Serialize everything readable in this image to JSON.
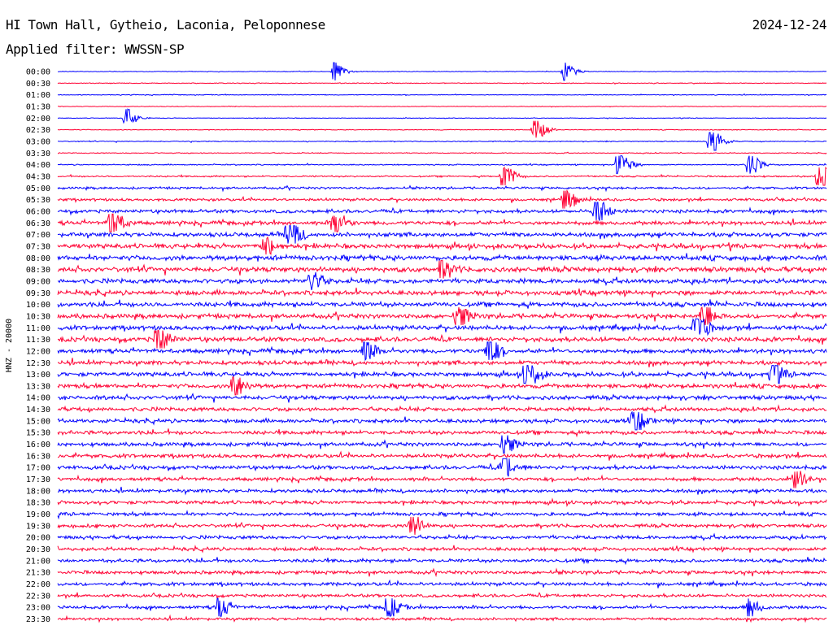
{
  "header": {
    "station": "HI Town Hall, Gytheio, Laconia, Peloponnese",
    "date": "2024-12-24",
    "filter": "Applied filter: WWSSN-SP"
  },
  "colors": {
    "even_row": "#0000ff",
    "odd_row": "#ff0033"
  },
  "chart_data": {
    "type": "line",
    "title": "HI Town Hall, Gytheio, Laconia, Peloponnese",
    "ylabel": "HNZ - 20000",
    "xlabel": "",
    "rows": [
      "00:00",
      "00:30",
      "01:00",
      "01:30",
      "02:00",
      "02:30",
      "03:00",
      "03:30",
      "04:00",
      "04:30",
      "05:00",
      "05:30",
      "06:00",
      "06:30",
      "07:00",
      "07:30",
      "08:00",
      "08:30",
      "09:00",
      "09:30",
      "10:00",
      "10:30",
      "11:00",
      "11:30",
      "12:00",
      "12:30",
      "13:00",
      "13:30",
      "14:00",
      "14:30",
      "15:00",
      "15:30",
      "16:00",
      "16:30",
      "17:00",
      "17:30",
      "18:00",
      "18:30",
      "19:00",
      "19:30",
      "20:00",
      "20:30",
      "21:00",
      "21:30",
      "22:00",
      "22:30",
      "23:00",
      "23:30"
    ],
    "noise_level": [
      0.08,
      0.1,
      0.1,
      0.08,
      0.08,
      0.1,
      0.12,
      0.12,
      0.15,
      0.2,
      0.3,
      0.35,
      0.45,
      0.5,
      0.55,
      0.6,
      0.65,
      0.65,
      0.6,
      0.6,
      0.6,
      0.6,
      0.6,
      0.6,
      0.55,
      0.55,
      0.55,
      0.55,
      0.55,
      0.5,
      0.5,
      0.5,
      0.5,
      0.5,
      0.5,
      0.45,
      0.45,
      0.45,
      0.45,
      0.45,
      0.45,
      0.45,
      0.45,
      0.45,
      0.45,
      0.4,
      0.4,
      0.35
    ],
    "events": [
      {
        "row": "00:00",
        "pos": 0.36,
        "amp": 0.5
      },
      {
        "row": "00:00",
        "pos": 0.66,
        "amp": 0.5
      },
      {
        "row": "02:00",
        "pos": 0.09,
        "amp": 0.5
      },
      {
        "row": "02:30",
        "pos": 0.62,
        "amp": 0.8
      },
      {
        "row": "03:00",
        "pos": 0.85,
        "amp": 0.9
      },
      {
        "row": "04:00",
        "pos": 0.73,
        "amp": 0.9
      },
      {
        "row": "04:00",
        "pos": 0.9,
        "amp": 0.7
      },
      {
        "row": "04:30",
        "pos": 0.58,
        "amp": 0.9
      },
      {
        "row": "04:30",
        "pos": 0.99,
        "amp": 0.9
      },
      {
        "row": "05:30",
        "pos": 0.66,
        "amp": 0.7
      },
      {
        "row": "06:00",
        "pos": 0.7,
        "amp": 1.0
      },
      {
        "row": "06:30",
        "pos": 0.07,
        "amp": 1.0
      },
      {
        "row": "06:30",
        "pos": 0.36,
        "amp": 0.8
      },
      {
        "row": "07:00",
        "pos": 0.3,
        "amp": 1.1
      },
      {
        "row": "07:30",
        "pos": 0.27,
        "amp": 0.6
      },
      {
        "row": "08:30",
        "pos": 0.5,
        "amp": 0.7
      },
      {
        "row": "09:00",
        "pos": 0.33,
        "amp": 0.6
      },
      {
        "row": "10:30",
        "pos": 0.52,
        "amp": 0.9
      },
      {
        "row": "10:30",
        "pos": 0.84,
        "amp": 0.7
      },
      {
        "row": "11:00",
        "pos": 0.83,
        "amp": 1.1
      },
      {
        "row": "11:30",
        "pos": 0.13,
        "amp": 1.0
      },
      {
        "row": "12:00",
        "pos": 0.4,
        "amp": 0.6
      },
      {
        "row": "12:00",
        "pos": 0.56,
        "amp": 0.9
      },
      {
        "row": "13:00",
        "pos": 0.61,
        "amp": 1.1
      },
      {
        "row": "13:00",
        "pos": 0.93,
        "amp": 0.8
      },
      {
        "row": "13:30",
        "pos": 0.23,
        "amp": 0.8
      },
      {
        "row": "15:00",
        "pos": 0.75,
        "amp": 0.9
      },
      {
        "row": "16:00",
        "pos": 0.58,
        "amp": 0.8
      },
      {
        "row": "17:00",
        "pos": 0.58,
        "amp": 0.9
      },
      {
        "row": "17:30",
        "pos": 0.96,
        "amp": 0.5
      },
      {
        "row": "19:30",
        "pos": 0.46,
        "amp": 0.8
      },
      {
        "row": "23:00",
        "pos": 0.21,
        "amp": 0.6
      },
      {
        "row": "23:00",
        "pos": 0.43,
        "amp": 0.7
      },
      {
        "row": "23:00",
        "pos": 0.9,
        "amp": 0.5
      }
    ]
  }
}
